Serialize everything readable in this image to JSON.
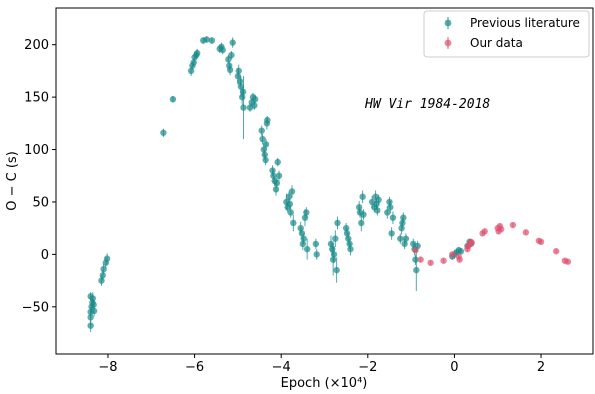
{
  "chart_data": {
    "type": "scatter",
    "title": "",
    "xlabel": "Epoch (×10⁴)",
    "ylabel": "O − C (s)",
    "xlim": [
      -9.2,
      3.2
    ],
    "ylim": [
      -95,
      235
    ],
    "xticks": [
      -8,
      -6,
      -4,
      -2,
      0,
      2
    ],
    "xtick_labels": [
      "−8",
      "−6",
      "−4",
      "−2",
      "0",
      "2"
    ],
    "yticks": [
      -50,
      0,
      50,
      100,
      150,
      200
    ],
    "ytick_labels": [
      "−50",
      "0",
      "50",
      "100",
      "150",
      "200"
    ],
    "grid": false,
    "legend_position": "top-right",
    "annotation": "HW Vir 1984-2018",
    "colors": {
      "previous": "#1a8a8a",
      "ours": "#e0506e"
    },
    "series": [
      {
        "name": "Previous literature",
        "points": [
          [
            -8.4,
            -68,
            6
          ],
          [
            -8.4,
            -60,
            8
          ],
          [
            -8.4,
            -55,
            5
          ],
          [
            -8.38,
            -50,
            6
          ],
          [
            -8.36,
            -46,
            5
          ],
          [
            -8.35,
            -42,
            6
          ],
          [
            -8.33,
            -48,
            5
          ],
          [
            -8.32,
            -54,
            5
          ],
          [
            -8.4,
            -40,
            4
          ],
          [
            -8.15,
            -25,
            5
          ],
          [
            -8.12,
            -20,
            5
          ],
          [
            -8.1,
            -14,
            5
          ],
          [
            -8.05,
            -8,
            5
          ],
          [
            -8.02,
            -4,
            5
          ],
          [
            -6.72,
            116,
            4
          ],
          [
            -6.5,
            148,
            3
          ],
          [
            -6.08,
            175,
            5
          ],
          [
            -6.05,
            180,
            4
          ],
          [
            -6.02,
            183,
            4
          ],
          [
            -6.0,
            188,
            5
          ],
          [
            -5.96,
            190,
            4
          ],
          [
            -5.94,
            192,
            4
          ],
          [
            -5.8,
            204,
            3
          ],
          [
            -5.72,
            205,
            3
          ],
          [
            -5.6,
            204,
            3
          ],
          [
            -5.42,
            196,
            4
          ],
          [
            -5.38,
            198,
            4
          ],
          [
            -5.35,
            195,
            4
          ],
          [
            -5.22,
            186,
            4
          ],
          [
            -5.2,
            180,
            4
          ],
          [
            -5.18,
            176,
            5
          ],
          [
            -5.15,
            190,
            4
          ],
          [
            -5.12,
            202,
            5
          ],
          [
            -5.0,
            170,
            8
          ],
          [
            -4.98,
            175,
            6
          ],
          [
            -4.95,
            165,
            5
          ],
          [
            -4.93,
            160,
            10
          ],
          [
            -4.9,
            150,
            8
          ],
          [
            -4.88,
            155,
            5
          ],
          [
            -4.87,
            140,
            30
          ],
          [
            -4.72,
            140,
            4
          ],
          [
            -4.68,
            145,
            4
          ],
          [
            -4.65,
            150,
            4
          ],
          [
            -4.62,
            142,
            4
          ],
          [
            -4.6,
            148,
            4
          ],
          [
            -4.45,
            118,
            5
          ],
          [
            -4.43,
            110,
            5
          ],
          [
            -4.4,
            100,
            6
          ],
          [
            -4.38,
            95,
            5
          ],
          [
            -4.36,
            90,
            5
          ],
          [
            -4.35,
            105,
            5
          ],
          [
            -4.33,
            125,
            6
          ],
          [
            -4.32,
            128,
            4
          ],
          [
            -4.2,
            80,
            5
          ],
          [
            -4.18,
            75,
            6
          ],
          [
            -4.15,
            70,
            5
          ],
          [
            -4.12,
            62,
            6
          ],
          [
            -4.1,
            68,
            5
          ],
          [
            -4.08,
            88,
            4
          ],
          [
            -4.05,
            75,
            5
          ],
          [
            -3.88,
            50,
            8
          ],
          [
            -3.85,
            45,
            5
          ],
          [
            -3.82,
            55,
            5
          ],
          [
            -3.8,
            48,
            5
          ],
          [
            -3.78,
            40,
            5
          ],
          [
            -3.75,
            60,
            6
          ],
          [
            -3.72,
            30,
            8
          ],
          [
            -3.55,
            25,
            6
          ],
          [
            -3.52,
            20,
            5
          ],
          [
            -3.5,
            10,
            6
          ],
          [
            -3.48,
            15,
            5
          ],
          [
            -3.45,
            35,
            8
          ],
          [
            -3.42,
            40,
            5
          ],
          [
            -3.4,
            5,
            10
          ],
          [
            -3.2,
            10,
            5
          ],
          [
            -3.18,
            0,
            5
          ],
          [
            -2.85,
            10,
            8
          ],
          [
            -2.82,
            5,
            6
          ],
          [
            -2.8,
            -5,
            15
          ],
          [
            -2.78,
            0,
            8
          ],
          [
            -2.75,
            15,
            8
          ],
          [
            -2.72,
            -15,
            12
          ],
          [
            -2.7,
            30,
            6
          ],
          [
            -2.5,
            25,
            5
          ],
          [
            -2.48,
            20,
            5
          ],
          [
            -2.45,
            15,
            6
          ],
          [
            -2.42,
            10,
            5
          ],
          [
            -2.4,
            5,
            6
          ],
          [
            -2.2,
            45,
            6
          ],
          [
            -2.18,
            40,
            5
          ],
          [
            -2.15,
            30,
            8
          ],
          [
            -2.12,
            55,
            6
          ],
          [
            -2.1,
            38,
            5
          ],
          [
            -1.9,
            50,
            6
          ],
          [
            -1.85,
            45,
            5
          ],
          [
            -1.82,
            55,
            6
          ],
          [
            -1.8,
            48,
            5
          ],
          [
            -1.78,
            42,
            5
          ],
          [
            -1.75,
            52,
            5
          ],
          [
            -1.55,
            40,
            6
          ],
          [
            -1.5,
            50,
            5
          ],
          [
            -1.48,
            45,
            6
          ],
          [
            -1.45,
            20,
            6
          ],
          [
            -1.42,
            35,
            6
          ],
          [
            -1.25,
            15,
            5
          ],
          [
            -1.22,
            25,
            6
          ],
          [
            -1.2,
            30,
            5
          ],
          [
            -1.18,
            35,
            5
          ],
          [
            -1.15,
            10,
            5
          ],
          [
            -1.12,
            15,
            5
          ],
          [
            -0.95,
            10,
            5
          ],
          [
            -0.92,
            5,
            6
          ],
          [
            -0.9,
            -5,
            5
          ],
          [
            -0.88,
            -15,
            20
          ],
          [
            -0.85,
            8,
            5
          ],
          [
            0.0,
            0,
            4
          ],
          [
            0.05,
            2,
            3
          ],
          [
            0.1,
            4,
            3
          ],
          [
            0.15,
            3,
            3
          ],
          [
            -0.05,
            -2,
            3
          ],
          [
            0.3,
            8,
            3
          ],
          [
            0.35,
            12,
            3
          ],
          [
            0.38,
            10,
            3
          ]
        ]
      },
      {
        "name": "Our data",
        "points": [
          [
            -0.9,
            4,
            2
          ],
          [
            -0.78,
            -5,
            2
          ],
          [
            -0.55,
            -8,
            2
          ],
          [
            -0.25,
            -6,
            2
          ],
          [
            -0.05,
            0,
            2
          ],
          [
            0.1,
            -2,
            2
          ],
          [
            0.12,
            -5,
            2
          ],
          [
            0.3,
            5,
            2
          ],
          [
            0.32,
            8,
            2
          ],
          [
            0.35,
            10,
            2
          ],
          [
            0.38,
            12,
            2
          ],
          [
            0.4,
            11,
            2
          ],
          [
            0.65,
            20,
            2
          ],
          [
            0.7,
            22,
            2
          ],
          [
            1.0,
            25,
            2
          ],
          [
            1.02,
            22,
            2
          ],
          [
            1.05,
            27,
            2
          ],
          [
            1.08,
            24,
            2
          ],
          [
            1.35,
            28,
            2
          ],
          [
            1.65,
            21,
            2
          ],
          [
            1.95,
            13,
            2
          ],
          [
            2.0,
            12,
            2
          ],
          [
            2.35,
            3,
            2
          ],
          [
            2.55,
            -6,
            2
          ],
          [
            2.62,
            -7,
            2
          ]
        ]
      }
    ]
  }
}
